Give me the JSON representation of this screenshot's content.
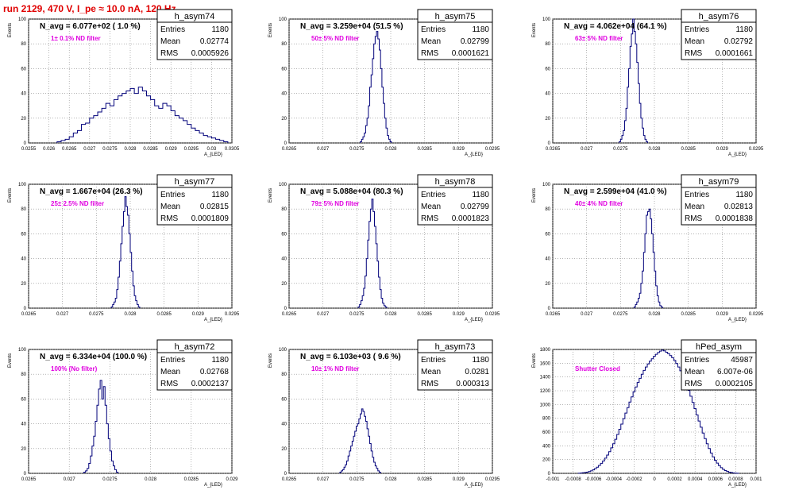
{
  "page_title": "run 2129,   470 V, I_pe ≈ 10.0 nA, 120 Hz",
  "colors": {
    "histogram": "#00007a",
    "note": "#e000e0",
    "title": "#e00000",
    "grid": "#888888"
  },
  "chart_data": [
    {
      "type": "bar",
      "name": "h_asym74",
      "ylabel": "Events",
      "xlabel": "A_{LED}",
      "headline": "N_avg = 6.077e+02 ( 1.0 %)",
      "note": "1± 0.1% ND filter",
      "stats": [
        [
          "Entries",
          "1180"
        ],
        [
          "Mean",
          "0.02774"
        ],
        [
          "RMS",
          "0.0005926"
        ]
      ],
      "xlim": [
        0.0255,
        0.0305
      ],
      "ylim": [
        0,
        100
      ],
      "xticks": [
        "0.0255",
        "0.026",
        "0.0265",
        "0.027",
        "0.0275",
        "0.028",
        "0.0285",
        "0.029",
        "0.0295",
        "0.03",
        "0.0305"
      ],
      "yticks": [
        "0",
        "20",
        "40",
        "60",
        "80",
        "100"
      ],
      "x_start": 0.0262,
      "bin_width": 0.0001,
      "values": [
        1,
        2,
        3,
        5,
        8,
        10,
        15,
        16,
        20,
        22,
        25,
        28,
        32,
        30,
        35,
        38,
        40,
        42,
        44,
        40,
        45,
        42,
        38,
        35,
        30,
        28,
        32,
        30,
        26,
        22,
        20,
        18,
        15,
        12,
        10,
        8,
        6,
        5,
        4,
        3,
        2,
        1
      ]
    },
    {
      "type": "bar",
      "name": "h_asym75",
      "ylabel": "Events",
      "xlabel": "A_{LED}",
      "headline": "N_avg = 3.259e+04 (51.5 %)",
      "note": "50± 5% ND filter",
      "stats": [
        [
          "Entries",
          "1180"
        ],
        [
          "Mean",
          "0.02799"
        ],
        [
          "RMS",
          "0.0001621"
        ]
      ],
      "xlim": [
        0.0265,
        0.0295
      ],
      "ylim": [
        0,
        100
      ],
      "xticks": [
        "0.0265",
        "0.027",
        "0.0275",
        "0.028",
        "0.0285",
        "0.029",
        "0.0295"
      ],
      "yticks": [
        "0",
        "20",
        "40",
        "60",
        "80",
        "100"
      ],
      "x_start": 0.02755,
      "bin_width": 2e-05,
      "values": [
        1,
        3,
        5,
        8,
        14,
        20,
        30,
        45,
        55,
        68,
        80,
        86,
        90,
        84,
        75,
        60,
        45,
        32,
        20,
        12,
        6,
        3,
        1
      ]
    },
    {
      "type": "bar",
      "name": "h_asym76",
      "ylabel": "Events",
      "xlabel": "A_{LED}",
      "headline": "N_avg = 4.062e+04 (64.1 %)",
      "note": "63± 5% ND filter",
      "stats": [
        [
          "Entries",
          "1180"
        ],
        [
          "Mean",
          "0.02792"
        ],
        [
          "RMS",
          "0.0001661"
        ]
      ],
      "xlim": [
        0.0265,
        0.0295
      ],
      "ylim": [
        0,
        100
      ],
      "xticks": [
        "0.0265",
        "0.027",
        "0.0275",
        "0.028",
        "0.0285",
        "0.029",
        "0.0295"
      ],
      "yticks": [
        "0",
        "20",
        "40",
        "60",
        "80",
        "100"
      ],
      "x_start": 0.02748,
      "bin_width": 2e-05,
      "values": [
        1,
        3,
        6,
        10,
        18,
        28,
        45,
        60,
        78,
        88,
        100,
        90,
        80,
        65,
        48,
        32,
        20,
        12,
        6,
        3,
        1
      ]
    },
    {
      "type": "bar",
      "name": "h_asym77",
      "ylabel": "Events",
      "xlabel": "A_{LED}",
      "headline": "N_avg = 1.667e+04 (26.3 %)",
      "note": "25± 2.5% ND filter",
      "stats": [
        [
          "Entries",
          "1180"
        ],
        [
          "Mean",
          "0.02815"
        ],
        [
          "RMS",
          "0.0001809"
        ]
      ],
      "xlim": [
        0.0265,
        0.0295
      ],
      "ylim": [
        0,
        100
      ],
      "xticks": [
        "0.0265",
        "0.027",
        "0.0275",
        "0.028",
        "0.0285",
        "0.029",
        "0.0295"
      ],
      "yticks": [
        "0",
        "20",
        "40",
        "60",
        "80",
        "100"
      ],
      "x_start": 0.02772,
      "bin_width": 2e-05,
      "values": [
        1,
        3,
        5,
        8,
        15,
        25,
        38,
        52,
        66,
        78,
        90,
        82,
        75,
        60,
        45,
        30,
        18,
        10,
        6,
        3,
        1
      ]
    },
    {
      "type": "bar",
      "name": "h_asym78",
      "ylabel": "Events",
      "xlabel": "A_{LED}",
      "headline": "N_avg = 5.088e+04 (80.3 %)",
      "note": "79± 5% ND filter",
      "stats": [
        [
          "Entries",
          "1180"
        ],
        [
          "Mean",
          "0.02799"
        ],
        [
          "RMS",
          "0.0001823"
        ]
      ],
      "xlim": [
        0.0265,
        0.0295
      ],
      "ylim": [
        0,
        100
      ],
      "xticks": [
        "0.0265",
        "0.027",
        "0.0275",
        "0.028",
        "0.0285",
        "0.029",
        "0.0295"
      ],
      "yticks": [
        "0",
        "20",
        "40",
        "60",
        "80",
        "100"
      ],
      "x_start": 0.02752,
      "bin_width": 2e-05,
      "values": [
        1,
        3,
        6,
        10,
        16,
        26,
        40,
        55,
        70,
        80,
        88,
        78,
        66,
        52,
        38,
        25,
        15,
        8,
        4,
        2,
        1
      ]
    },
    {
      "type": "bar",
      "name": "h_asym79",
      "ylabel": "Events",
      "xlabel": "A_{LED}",
      "headline": "N_avg = 2.599e+04 (41.0 %)",
      "note": "40± 4% ND filter",
      "stats": [
        [
          "Entries",
          "1180"
        ],
        [
          "Mean",
          "0.02813"
        ],
        [
          "RMS",
          "0.0001838"
        ]
      ],
      "xlim": [
        0.0265,
        0.0295
      ],
      "ylim": [
        0,
        100
      ],
      "xticks": [
        "0.0265",
        "0.027",
        "0.0275",
        "0.028",
        "0.0285",
        "0.029",
        "0.0295"
      ],
      "yticks": [
        "0",
        "20",
        "40",
        "60",
        "80",
        "100"
      ],
      "x_start": 0.0277,
      "bin_width": 2e-05,
      "values": [
        1,
        3,
        5,
        8,
        12,
        20,
        30,
        45,
        60,
        75,
        78,
        80,
        72,
        60,
        45,
        30,
        18,
        10,
        5,
        2,
        1
      ]
    },
    {
      "type": "bar",
      "name": "h_asym72",
      "ylabel": "Events",
      "xlabel": "A_{LED}",
      "headline": "N_avg = 6.334e+04 (100.0 %)",
      "note": "100% (No filter)",
      "stats": [
        [
          "Entries",
          "1180"
        ],
        [
          "Mean",
          "0.02768"
        ],
        [
          "RMS",
          "0.0002137"
        ]
      ],
      "xlim": [
        0.0265,
        0.029
      ],
      "ylim": [
        0,
        100
      ],
      "xticks": [
        "0.0265",
        "0.027",
        "0.0275",
        "0.028",
        "0.0285",
        "0.029"
      ],
      "yticks": [
        "0",
        "20",
        "40",
        "60",
        "80",
        "100"
      ],
      "x_start": 0.02718,
      "bin_width": 2e-05,
      "values": [
        1,
        2,
        4,
        8,
        14,
        22,
        30,
        42,
        55,
        68,
        75,
        60,
        70,
        55,
        40,
        28,
        18,
        10,
        6,
        3,
        1
      ]
    },
    {
      "type": "bar",
      "name": "h_asym73",
      "ylabel": "Events",
      "xlabel": "A_{LED}",
      "headline": "N_avg = 6.103e+03 ( 9.6 %)",
      "note": "10± 1% ND filter",
      "stats": [
        [
          "Entries",
          "1180"
        ],
        [
          "Mean",
          "0.0281"
        ],
        [
          "RMS",
          "0.000313"
        ]
      ],
      "xlim": [
        0.0265,
        0.0295
      ],
      "ylim": [
        0,
        100
      ],
      "xticks": [
        "0.0265",
        "0.027",
        "0.0275",
        "0.028",
        "0.0285",
        "0.029",
        "0.0295"
      ],
      "yticks": [
        "0",
        "20",
        "40",
        "60",
        "80",
        "100"
      ],
      "x_start": 0.02725,
      "bin_width": 2e-05,
      "values": [
        1,
        2,
        3,
        5,
        7,
        10,
        14,
        18,
        22,
        26,
        30,
        34,
        38,
        40,
        44,
        48,
        52,
        50,
        46,
        42,
        36,
        30,
        24,
        18,
        13,
        9,
        6,
        4,
        2,
        1
      ]
    },
    {
      "type": "bar",
      "name": "hPed_asym",
      "ylabel": "Events",
      "xlabel": "A_{LED}",
      "headline": "",
      "note": "Shutter Closed",
      "stats": [
        [
          "Entries",
          "45987"
        ],
        [
          "Mean",
          "6.007e-06"
        ],
        [
          "RMS",
          "0.0002105"
        ]
      ],
      "xlim": [
        -0.001,
        0.001
      ],
      "ylim": [
        0,
        1800
      ],
      "xticks": [
        "-0.001",
        "-0.0008",
        "-0.0006",
        "-0.0004",
        "-0.0002",
        "0",
        "0.0002",
        "0.0004",
        "0.0006",
        "0.0008",
        "0.001"
      ],
      "yticks": [
        "0",
        "200",
        "400",
        "600",
        "800",
        "1000",
        "1200",
        "1400",
        "1600",
        "1800"
      ],
      "x_start": -0.00075,
      "bin_width": 2e-05,
      "values": [
        2,
        4,
        8,
        12,
        18,
        26,
        36,
        50,
        68,
        90,
        115,
        145,
        180,
        220,
        265,
        315,
        370,
        430,
        495,
        565,
        640,
        715,
        795,
        875,
        955,
        1035,
        1110,
        1185,
        1255,
        1320,
        1380,
        1440,
        1495,
        1545,
        1590,
        1630,
        1665,
        1700,
        1730,
        1755,
        1775,
        1790,
        1780,
        1760,
        1740,
        1710,
        1680,
        1640,
        1595,
        1545,
        1490,
        1430,
        1360,
        1285,
        1205,
        1120,
        1030,
        940,
        850,
        760,
        670,
        585,
        505,
        430,
        360,
        295,
        240,
        190,
        148,
        112,
        82,
        58,
        40,
        27,
        18,
        11,
        6,
        3,
        1
      ]
    }
  ]
}
